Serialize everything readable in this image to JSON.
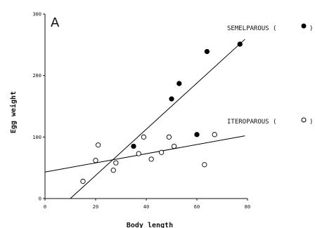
{
  "chart_data": {
    "type": "scatter",
    "panel_label": "A",
    "xlabel": "Body length",
    "ylabel": "Egg weight",
    "xlim": [
      0,
      80
    ],
    "ylim": [
      0,
      300
    ],
    "x_ticks": [
      0,
      20,
      40,
      60,
      80
    ],
    "y_ticks": [
      0,
      100,
      200,
      300
    ],
    "series": [
      {
        "name": "SEMELPAROUS",
        "legend_label": "SEMELPAROUS (",
        "marker": "filled",
        "color": "#000000",
        "points": [
          {
            "x": 35,
            "y": 85
          },
          {
            "x": 50,
            "y": 162
          },
          {
            "x": 53,
            "y": 187
          },
          {
            "x": 60,
            "y": 104
          },
          {
            "x": 64,
            "y": 239
          },
          {
            "x": 77,
            "y": 251
          }
        ],
        "fit_line": [
          {
            "x": 10,
            "y": 0
          },
          {
            "x": 79,
            "y": 259
          }
        ]
      },
      {
        "name": "ITEROPAROUS",
        "legend_label": "ITEROPAROUS (",
        "marker": "open",
        "color": "#000000",
        "points": [
          {
            "x": 15,
            "y": 28
          },
          {
            "x": 20,
            "y": 62
          },
          {
            "x": 21,
            "y": 87
          },
          {
            "x": 27,
            "y": 46
          },
          {
            "x": 28,
            "y": 58
          },
          {
            "x": 37,
            "y": 73
          },
          {
            "x": 39,
            "y": 100
          },
          {
            "x": 42,
            "y": 64
          },
          {
            "x": 46,
            "y": 75
          },
          {
            "x": 49,
            "y": 100
          },
          {
            "x": 51,
            "y": 85
          },
          {
            "x": 63,
            "y": 55
          },
          {
            "x": 67,
            "y": 104
          }
        ],
        "fit_line": [
          {
            "x": 0,
            "y": 43
          },
          {
            "x": 79,
            "y": 102
          }
        ]
      }
    ],
    "legend_closing": ")",
    "grid": false
  }
}
